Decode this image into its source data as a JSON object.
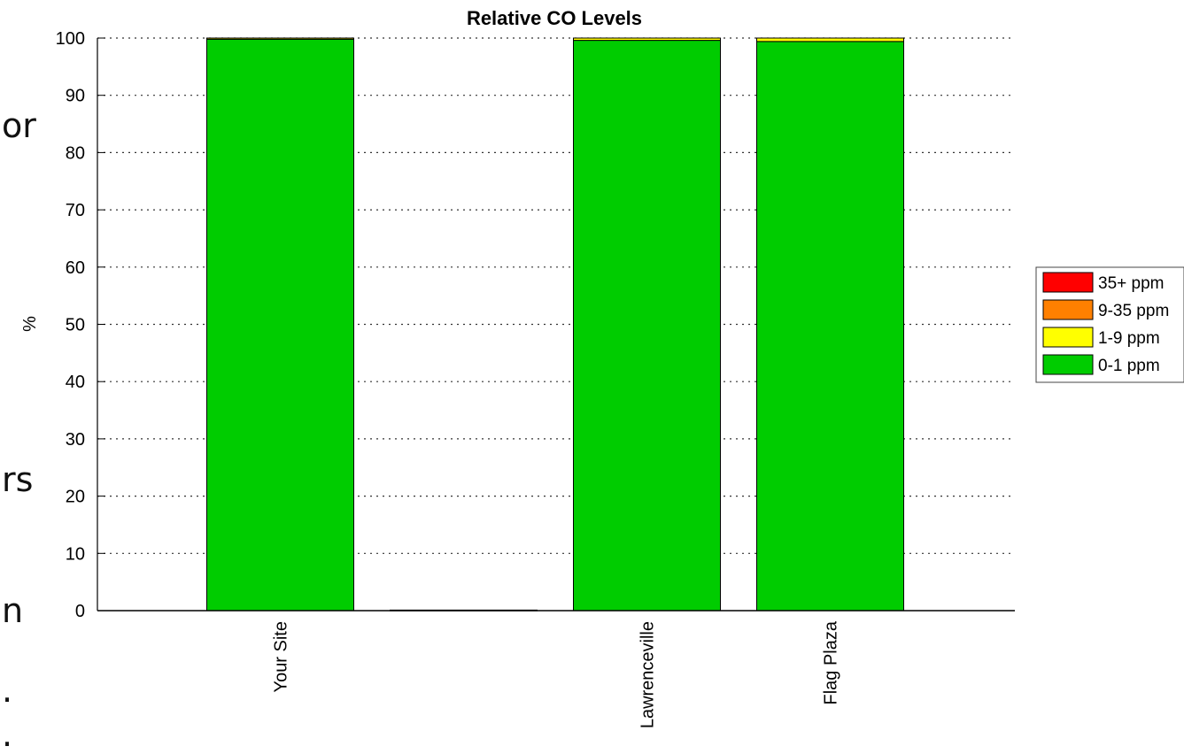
{
  "chart_data": {
    "type": "bar",
    "stacked": true,
    "title": "Relative CO Levels",
    "xlabel": "",
    "ylabel": "%",
    "ylim": [
      0,
      100
    ],
    "yticks": [
      0,
      10,
      20,
      30,
      40,
      50,
      60,
      70,
      80,
      90,
      100
    ],
    "grid": "horizontal dotted",
    "legend_position": "right",
    "categories": [
      "Your Site",
      "",
      "Lawrenceville",
      "Flag Plaza"
    ],
    "series": [
      {
        "name": "0-1 ppm",
        "color": "#00cc00",
        "values": [
          99.8,
          0.1,
          99.6,
          99.4
        ]
      },
      {
        "name": "1-9 ppm",
        "color": "#ffff00",
        "values": [
          0.2,
          0,
          0.4,
          0.6
        ]
      },
      {
        "name": "9-35 ppm",
        "color": "#ff8000",
        "values": [
          0,
          0,
          0,
          0
        ]
      },
      {
        "name": "35+ ppm",
        "color": "#ff0000",
        "values": [
          0,
          0,
          0,
          0
        ]
      }
    ]
  },
  "side_text": [
    "or",
    "rs",
    "n",
    ".",
    "."
  ]
}
